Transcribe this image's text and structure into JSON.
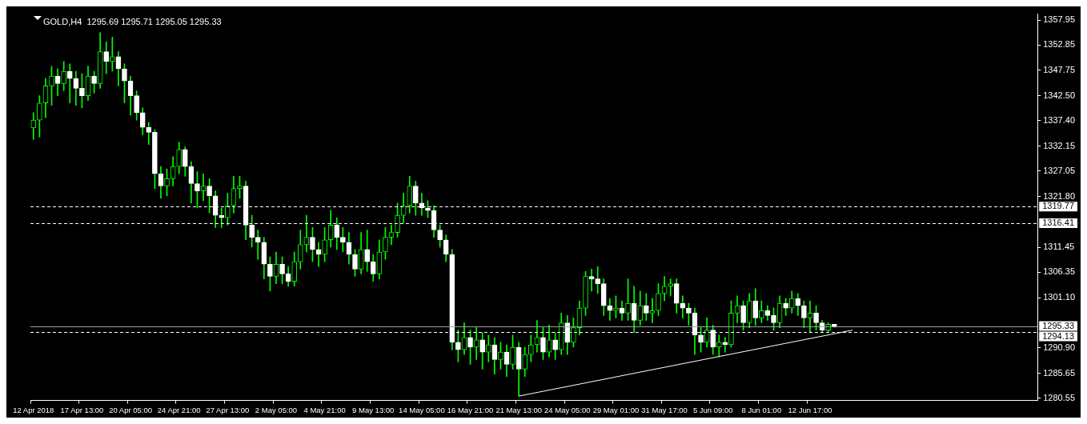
{
  "chart_data": {
    "type": "candlestick",
    "title": "GOLD,H4  1295.69 1295.71 1295.05 1295.33",
    "color": "#00ff00",
    "categories": [
      "12 Apr 2018",
      null,
      null,
      null,
      null,
      null,
      null,
      null,
      "17 Apr 13:00",
      null,
      null,
      null,
      null,
      null,
      null,
      null,
      "20 Apr 05:00",
      null,
      null,
      null,
      null,
      null,
      null,
      null,
      "24 Apr 21:00",
      null,
      null,
      null,
      null,
      null,
      null,
      null,
      "27 Apr 13:00",
      null,
      null,
      null,
      null,
      null,
      null,
      null,
      "2 May 05:00",
      null,
      null,
      null,
      null,
      null,
      null,
      null,
      "4 May 21:00",
      null,
      null,
      null,
      null,
      null,
      null,
      null,
      "9 May 13:00",
      null,
      null,
      null,
      null,
      null,
      null,
      null,
      "14 May 05:00",
      null,
      null,
      null,
      null,
      null,
      null,
      null,
      "16 May 21:00",
      null,
      null,
      null,
      null,
      null,
      null,
      null,
      "21 May 13:00",
      null,
      null,
      null,
      null,
      null,
      null,
      null,
      "24 May 05:00",
      null,
      null,
      null,
      null,
      null,
      null,
      null,
      "29 May 01:00",
      null,
      null,
      null,
      null,
      null,
      null,
      null,
      "31 May 17:00",
      null,
      null,
      null,
      null,
      null,
      null,
      null,
      "5 Jun 09:00",
      null,
      null,
      null,
      null,
      null,
      null,
      null,
      "8 Jun 01:00",
      null,
      null,
      null,
      null,
      null,
      null,
      null,
      "12 Jun 17:00",
      null,
      null,
      null,
      null,
      null,
      null,
      null,
      null,
      null,
      null,
      null,
      null,
      null,
      null,
      null,
      null,
      null,
      null,
      null,
      null,
      null,
      null,
      null,
      null,
      null,
      null,
      null,
      null,
      null,
      null,
      null,
      null,
      null,
      null,
      null,
      null,
      null
    ],
    "ohlc": [
      [
        1335.9,
        1339.0,
        1333.5,
        1337.5
      ],
      [
        1337.5,
        1342.5,
        1334.0,
        1341.0
      ],
      [
        1341.0,
        1346.0,
        1338.0,
        1344.5
      ],
      [
        1344.5,
        1348.5,
        1340.5,
        1346.5
      ],
      [
        1346.5,
        1348.0,
        1342.5,
        1345.0
      ],
      [
        1345.0,
        1349.5,
        1343.5,
        1347.5
      ],
      [
        1347.5,
        1349.0,
        1341.0,
        1346.0
      ],
      [
        1346.0,
        1347.5,
        1340.5,
        1344.0
      ],
      [
        1344.0,
        1347.0,
        1340.0,
        1342.5
      ],
      [
        1342.5,
        1348.5,
        1341.5,
        1346.5
      ],
      [
        1346.5,
        1347.5,
        1343.0,
        1345.0
      ],
      [
        1345.0,
        1355.4,
        1344.0,
        1351.5
      ],
      [
        1351.5,
        1353.5,
        1347.0,
        1349.5
      ],
      [
        1349.5,
        1354.5,
        1347.5,
        1350.5
      ],
      [
        1350.5,
        1351.5,
        1344.5,
        1348.0
      ],
      [
        1348.0,
        1349.0,
        1341.0,
        1345.5
      ],
      [
        1345.5,
        1346.5,
        1338.5,
        1342.5
      ],
      [
        1342.5,
        1343.5,
        1337.5,
        1339.0
      ],
      [
        1339.0,
        1340.0,
        1334.5,
        1336.0
      ],
      [
        1336.0,
        1337.0,
        1332.5,
        1335.0
      ],
      [
        1335.0,
        1335.5,
        1323.5,
        1326.5
      ],
      [
        1326.5,
        1328.0,
        1321.5,
        1324.0
      ],
      [
        1324.0,
        1327.5,
        1322.0,
        1325.5
      ],
      [
        1325.5,
        1330.0,
        1324.0,
        1328.0
      ],
      [
        1328.0,
        1333.0,
        1326.5,
        1331.5
      ],
      [
        1331.5,
        1332.0,
        1326.0,
        1328.0
      ],
      [
        1328.0,
        1329.0,
        1320.5,
        1324.5
      ],
      [
        1324.5,
        1327.0,
        1319.5,
        1323.0
      ],
      [
        1323.0,
        1326.5,
        1321.0,
        1324.0
      ],
      [
        1324.0,
        1325.5,
        1318.5,
        1322.0
      ],
      [
        1322.0,
        1323.0,
        1315.5,
        1318.0
      ],
      [
        1318.0,
        1319.5,
        1315.5,
        1317.5
      ],
      [
        1317.5,
        1322.5,
        1316.0,
        1320.0
      ],
      [
        1320.0,
        1326.0,
        1318.5,
        1323.5
      ],
      [
        1323.5,
        1326.0,
        1321.5,
        1324.0
      ],
      [
        1324.0,
        1325.0,
        1313.0,
        1316.0
      ],
      [
        1316.0,
        1318.0,
        1311.5,
        1313.5
      ],
      [
        1313.5,
        1315.0,
        1309.0,
        1312.5
      ],
      [
        1312.5,
        1313.5,
        1305.0,
        1308.0
      ],
      [
        1308.0,
        1309.5,
        1302.5,
        1305.5
      ],
      [
        1305.5,
        1310.5,
        1304.0,
        1308.0
      ],
      [
        1308.0,
        1309.5,
        1304.0,
        1306.0
      ],
      [
        1306.0,
        1307.5,
        1303.5,
        1304.5
      ],
      [
        1304.5,
        1310.5,
        1303.5,
        1308.5
      ],
      [
        1308.5,
        1315.0,
        1307.0,
        1312.0
      ],
      [
        1312.0,
        1318.0,
        1310.5,
        1313.5
      ],
      [
        1313.5,
        1315.5,
        1308.5,
        1311.0
      ],
      [
        1311.0,
        1312.5,
        1307.5,
        1310.0
      ],
      [
        1310.0,
        1315.5,
        1308.5,
        1313.0
      ],
      [
        1313.0,
        1319.0,
        1311.5,
        1316.0
      ],
      [
        1316.0,
        1317.5,
        1311.0,
        1313.5
      ],
      [
        1313.5,
        1315.5,
        1310.5,
        1312.5
      ],
      [
        1312.5,
        1314.5,
        1308.0,
        1310.0
      ],
      [
        1310.0,
        1311.0,
        1305.5,
        1307.0
      ],
      [
        1307.0,
        1314.5,
        1306.0,
        1311.0
      ],
      [
        1311.0,
        1315.0,
        1306.5,
        1308.5
      ],
      [
        1308.5,
        1310.0,
        1304.5,
        1306.0
      ],
      [
        1306.0,
        1313.0,
        1305.0,
        1310.5
      ],
      [
        1310.5,
        1315.5,
        1309.0,
        1313.5
      ],
      [
        1313.5,
        1316.0,
        1312.0,
        1314.5
      ],
      [
        1314.5,
        1320.5,
        1313.5,
        1318.0
      ],
      [
        1318.0,
        1322.5,
        1316.5,
        1320.0
      ],
      [
        1320.0,
        1326.0,
        1318.5,
        1324.0
      ],
      [
        1324.0,
        1325.0,
        1318.0,
        1320.5
      ],
      [
        1320.5,
        1322.5,
        1318.0,
        1319.5
      ],
      [
        1319.5,
        1321.0,
        1317.5,
        1319.0
      ],
      [
        1319.0,
        1320.0,
        1313.5,
        1315.0
      ],
      [
        1315.0,
        1316.0,
        1311.5,
        1313.0
      ],
      [
        1313.0,
        1314.0,
        1308.5,
        1310.0
      ],
      [
        1310.0,
        1311.0,
        1290.5,
        1292.0
      ],
      [
        1292.0,
        1294.5,
        1288.0,
        1290.5
      ],
      [
        1290.5,
        1296.0,
        1289.5,
        1293.0
      ],
      [
        1293.0,
        1294.5,
        1287.5,
        1291.0
      ],
      [
        1291.0,
        1295.0,
        1288.5,
        1292.5
      ],
      [
        1292.5,
        1294.0,
        1286.5,
        1290.0
      ],
      [
        1290.0,
        1293.5,
        1288.0,
        1291.5
      ],
      [
        1291.5,
        1293.0,
        1285.5,
        1288.5
      ],
      [
        1288.5,
        1292.0,
        1286.5,
        1290.0
      ],
      [
        1290.0,
        1291.5,
        1285.0,
        1287.5
      ],
      [
        1287.5,
        1293.5,
        1286.5,
        1291.0
      ],
      [
        1291.0,
        1292.0,
        1281.0,
        1286.5
      ],
      [
        1286.5,
        1291.0,
        1285.0,
        1289.5
      ],
      [
        1289.5,
        1293.5,
        1288.0,
        1291.5
      ],
      [
        1291.5,
        1296.5,
        1290.0,
        1293.0
      ],
      [
        1293.0,
        1295.0,
        1288.5,
        1290.0
      ],
      [
        1290.0,
        1295.5,
        1289.0,
        1292.5
      ],
      [
        1292.5,
        1294.0,
        1288.5,
        1290.5
      ],
      [
        1290.5,
        1298.0,
        1289.5,
        1296.0
      ],
      [
        1296.0,
        1297.5,
        1289.5,
        1292.0
      ],
      [
        1292.0,
        1297.0,
        1291.0,
        1295.0
      ],
      [
        1295.0,
        1300.5,
        1293.5,
        1299.0
      ],
      [
        1299.0,
        1306.5,
        1297.5,
        1305.5
      ],
      [
        1305.5,
        1307.0,
        1302.5,
        1305.0
      ],
      [
        1305.0,
        1307.5,
        1302.0,
        1304.0
      ],
      [
        1304.0,
        1305.0,
        1297.5,
        1299.5
      ],
      [
        1299.5,
        1301.0,
        1296.5,
        1298.5
      ],
      [
        1298.5,
        1301.5,
        1297.0,
        1299.0
      ],
      [
        1299.0,
        1300.5,
        1296.5,
        1298.0
      ],
      [
        1298.0,
        1305.0,
        1296.5,
        1300.0
      ],
      [
        1300.0,
        1303.5,
        1294.0,
        1296.5
      ],
      [
        1296.5,
        1302.5,
        1295.5,
        1299.5
      ],
      [
        1299.5,
        1302.0,
        1296.5,
        1298.0
      ],
      [
        1298.0,
        1301.0,
        1296.0,
        1298.5
      ],
      [
        1298.5,
        1304.0,
        1297.5,
        1302.0
      ],
      [
        1302.0,
        1305.5,
        1300.5,
        1303.5
      ],
      [
        1303.5,
        1305.0,
        1301.5,
        1304.0
      ],
      [
        1304.0,
        1305.0,
        1298.0,
        1300.0
      ],
      [
        1300.0,
        1301.5,
        1297.0,
        1299.0
      ],
      [
        1299.0,
        1300.0,
        1295.5,
        1298.0
      ],
      [
        1298.0,
        1299.0,
        1289.5,
        1293.5
      ],
      [
        1293.5,
        1295.0,
        1290.0,
        1292.0
      ],
      [
        1292.0,
        1297.0,
        1291.0,
        1294.5
      ],
      [
        1294.5,
        1295.5,
        1289.5,
        1291.0
      ],
      [
        1291.0,
        1293.5,
        1289.0,
        1292.0
      ],
      [
        1292.0,
        1293.0,
        1290.0,
        1291.5
      ],
      [
        1291.5,
        1300.5,
        1291.0,
        1298.0
      ],
      [
        1298.0,
        1301.5,
        1296.0,
        1299.5
      ],
      [
        1299.5,
        1300.5,
        1294.5,
        1296.0
      ],
      [
        1296.0,
        1302.0,
        1295.0,
        1300.5
      ],
      [
        1300.5,
        1303.0,
        1295.5,
        1297.0
      ],
      [
        1297.0,
        1300.5,
        1296.0,
        1298.5
      ],
      [
        1298.5,
        1299.5,
        1296.5,
        1297.5
      ],
      [
        1297.5,
        1299.0,
        1294.5,
        1296.0
      ],
      [
        1296.0,
        1301.5,
        1295.0,
        1300.0
      ],
      [
        1300.0,
        1301.0,
        1297.5,
        1299.0
      ],
      [
        1299.0,
        1302.5,
        1298.0,
        1301.0
      ],
      [
        1301.0,
        1302.0,
        1297.5,
        1299.5
      ],
      [
        1299.5,
        1300.5,
        1295.0,
        1297.0
      ],
      [
        1297.0,
        1300.5,
        1294.0,
        1298.0
      ],
      [
        1298.0,
        1299.5,
        1294.5,
        1296.0
      ],
      [
        1296.0,
        1296.5,
        1294.0,
        1294.5
      ],
      [
        1294.5,
        1296.0,
        1294.2,
        1295.69
      ],
      [
        1295.69,
        1295.71,
        1295.05,
        1295.33
      ],
      null,
      null,
      null,
      null,
      null,
      null,
      null,
      null,
      null,
      null,
      null,
      null,
      null,
      null,
      null,
      null,
      null,
      null,
      null,
      null,
      null,
      null,
      null,
      null,
      null,
      null,
      null,
      null,
      null,
      null,
      null,
      null,
      null
    ],
    "colors": [
      "#00ff00",
      "#00ff00",
      "#00ff00",
      "#00ff00",
      "#ffffff",
      "#00ff00",
      "#ffffff",
      "#ffffff",
      "#ffffff",
      "#00ff00",
      "#ffffff",
      "#00ff00",
      "#ffffff",
      "#00ff00",
      "#ffffff",
      "#ffffff",
      "#ffffff",
      "#ffffff",
      "#ffffff",
      "#ffffff",
      "#ffffff",
      "#ffffff",
      "#00ff00",
      "#00ff00",
      "#00ff00",
      "#ffffff",
      "#ffffff",
      "#ffffff",
      "#00ff00",
      "#ffffff",
      "#ffffff",
      "#ffffff",
      "#00ff00",
      "#00ff00",
      "#00ff00",
      "#ffffff",
      "#ffffff",
      "#ffffff",
      "#ffffff",
      "#ffffff",
      "#00ff00",
      "#ffffff",
      "#ffffff",
      "#00ff00",
      "#00ff00",
      "#00ff00",
      "#ffffff",
      "#ffffff",
      "#00ff00",
      "#00ff00",
      "#ffffff",
      "#ffffff",
      "#ffffff",
      "#ffffff",
      "#00ff00",
      "#ffffff",
      "#ffffff",
      "#00ff00",
      "#00ff00",
      "#00ff00",
      "#00ff00",
      "#00ff00",
      "#00ff00",
      "#ffffff",
      "#ffffff",
      "#ffffff",
      "#ffffff",
      "#ffffff",
      "#ffffff",
      "#ffffff",
      "#ffffff",
      "#00ff00",
      "#ffffff",
      "#00ff00",
      "#ffffff",
      "#00ff00",
      "#ffffff",
      "#00ff00",
      "#ffffff",
      "#00ff00",
      "#ffffff",
      "#00ff00",
      "#00ff00",
      "#00ff00",
      "#ffffff",
      "#00ff00",
      "#ffffff",
      "#00ff00",
      "#ffffff",
      "#00ff00",
      "#00ff00",
      "#00ff00",
      "#ffffff",
      "#ffffff",
      "#ffffff",
      "#ffffff",
      "#00ff00",
      "#ffffff",
      "#00ff00",
      "#ffffff",
      "#00ff00",
      "#ffffff",
      "#00ff00",
      "#00ff00",
      "#00ff00",
      "#00ff00",
      "#ffffff",
      "#ffffff",
      "#ffffff",
      "#ffffff",
      "#ffffff",
      "#00ff00",
      "#ffffff",
      "#00ff00",
      "#ffffff",
      "#00ff00",
      "#00ff00",
      "#ffffff",
      "#00ff00",
      "#ffffff",
      "#00ff00",
      "#ffffff",
      "#ffffff",
      "#00ff00",
      "#ffffff",
      "#00ff00",
      "#ffffff",
      "#ffffff",
      "#00ff00",
      "#ffffff",
      "#ffffff",
      "#00ff00",
      "#ffffff",
      null,
      null,
      null,
      null,
      null,
      null,
      null,
      null,
      null,
      null,
      null,
      null,
      null,
      null,
      null,
      null,
      null,
      null,
      null,
      null,
      null,
      null,
      null,
      null,
      null,
      null,
      null,
      null,
      null,
      null,
      null,
      null,
      null
    ],
    "series": [
      {
        "type": "line",
        "color": "#ffffff",
        "values": [
          null,
          null,
          null,
          null,
          null,
          null,
          null,
          null,
          null,
          null,
          null,
          null,
          null,
          null,
          null,
          null,
          null,
          null,
          null,
          null,
          null,
          null,
          null,
          null,
          null,
          null,
          null,
          null,
          null,
          null,
          null,
          null,
          null,
          null,
          null,
          null,
          null,
          null,
          null,
          null,
          null,
          null,
          null,
          null,
          null,
          null,
          null,
          null,
          null,
          null,
          null,
          null,
          null,
          null,
          null,
          null,
          null,
          null,
          null,
          null,
          null,
          null,
          null,
          null,
          null,
          null,
          null,
          null,
          null,
          null,
          null,
          null,
          null,
          null,
          null,
          null,
          null,
          null,
          null,
          null,
          1281.0,
          null,
          null,
          null,
          null,
          null,
          null,
          null,
          null,
          null,
          null,
          null,
          null,
          null,
          null,
          null,
          null,
          null,
          null,
          null,
          null,
          null,
          null,
          null,
          null,
          null,
          null,
          null,
          null,
          null,
          null,
          null,
          null,
          null,
          null,
          null,
          null,
          null,
          null,
          null,
          null,
          null,
          null,
          null,
          null,
          null,
          null,
          null,
          null,
          null,
          null,
          null,
          null,
          null,
          null,
          1294.5,
          null,
          null,
          null,
          null,
          null,
          null,
          null,
          null,
          null,
          null,
          null,
          null,
          null,
          null,
          null,
          null,
          null,
          null,
          null,
          null,
          null,
          null,
          null,
          null,
          null,
          null,
          null,
          null,
          null,
          null
        ]
      }
    ],
    "ylim": [
      1280.1,
      1359.2
    ],
    "yticks": [
      1280.55,
      1285.65,
      {
        "value": 1290.9,
        "label": "1290.90"
      },
      {
        "value": 1301.1,
        "label": "1301.10"
      },
      1306.35,
      1311.45,
      {
        "value": 1321.8,
        "label": "1321.80"
      },
      1327.05,
      1332.15,
      {
        "value": 1337.4,
        "label": "1337.40"
      },
      {
        "value": 1342.5,
        "label": "1342.50"
      },
      1347.75,
      1352.85,
      1357.95
    ],
    "ref_lines": [
      {
        "axis": "y",
        "value": 1319.77,
        "label": "1319.77",
        "color": "#ffffff",
        "line_style": "dashed"
      },
      {
        "axis": "y",
        "value": 1316.41,
        "label": "1316.41",
        "color": "#ffffff",
        "line_style": "dashed"
      },
      {
        "axis": "y",
        "value": 1295.33,
        "label": "1295.33",
        "color": "#a0a0a8",
        "line_style": "solid"
      },
      {
        "axis": "y",
        "value": 1294.13,
        "label": "1294.13",
        "color": "#ffffff",
        "line_style": "dashed"
      }
    ],
    "legend": false
  }
}
